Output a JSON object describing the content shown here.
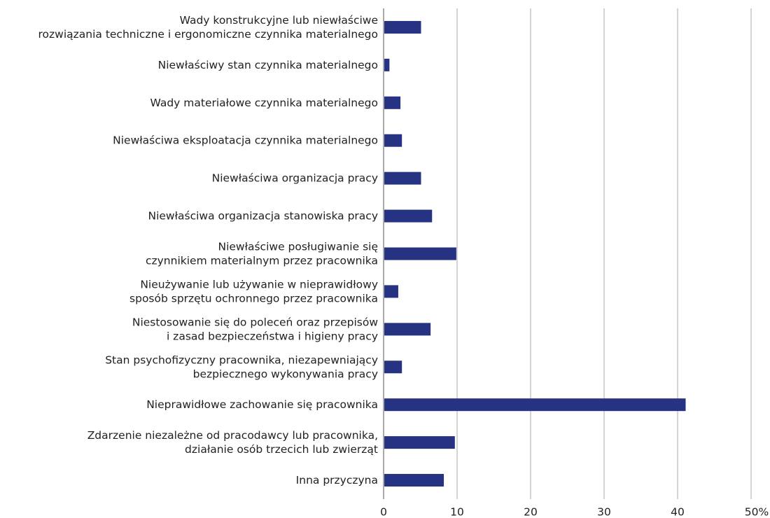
{
  "chart_data": {
    "type": "barh",
    "categories": [
      "Wady konstrukcyjne lub niewłaściwe\nrozwiązania techniczne i ergonomiczne czynnika materialnego",
      "Niewłaściwy stan czynnika materialnego",
      "Wady materiałowe czynnika materialnego",
      "Niewłaściwa eksploatacja czynnika materialnego",
      "Niewłaściwa organizacja pracy",
      "Niewłaściwa organizacja stanowiska pracy",
      "Niewłaściwe posługiwanie się\nczynnikiem materialnym przez pracownika",
      "Nieużywanie lub używanie w nieprawidłowy\nsposób sprzętu ochronnego przez pracownika",
      "Niestosowanie się do poleceń oraz przepisów\ni zasad bezpieczeństwa i higieny pracy",
      "Stan psychofizyczny pracownika, niezapewniający\nbezpiecznego wykonywania pracy",
      "Nieprawidłowe zachowanie się pracownika",
      "Zdarzenie niezależne od pracodawcy lub pracownika,\ndziałanie osób trzecich lub zwierząt",
      "Inna przyczyna"
    ],
    "values": [
      5.0,
      0.7,
      2.2,
      2.4,
      5.0,
      6.5,
      9.8,
      1.9,
      6.3,
      2.4,
      41.0,
      9.6,
      8.1
    ],
    "color": "#263282",
    "xlim": [
      0,
      50
    ],
    "xticks": [
      0,
      10,
      20,
      30,
      40,
      {
        "value": 50,
        "label": "50%"
      }
    ],
    "grid": true
  }
}
